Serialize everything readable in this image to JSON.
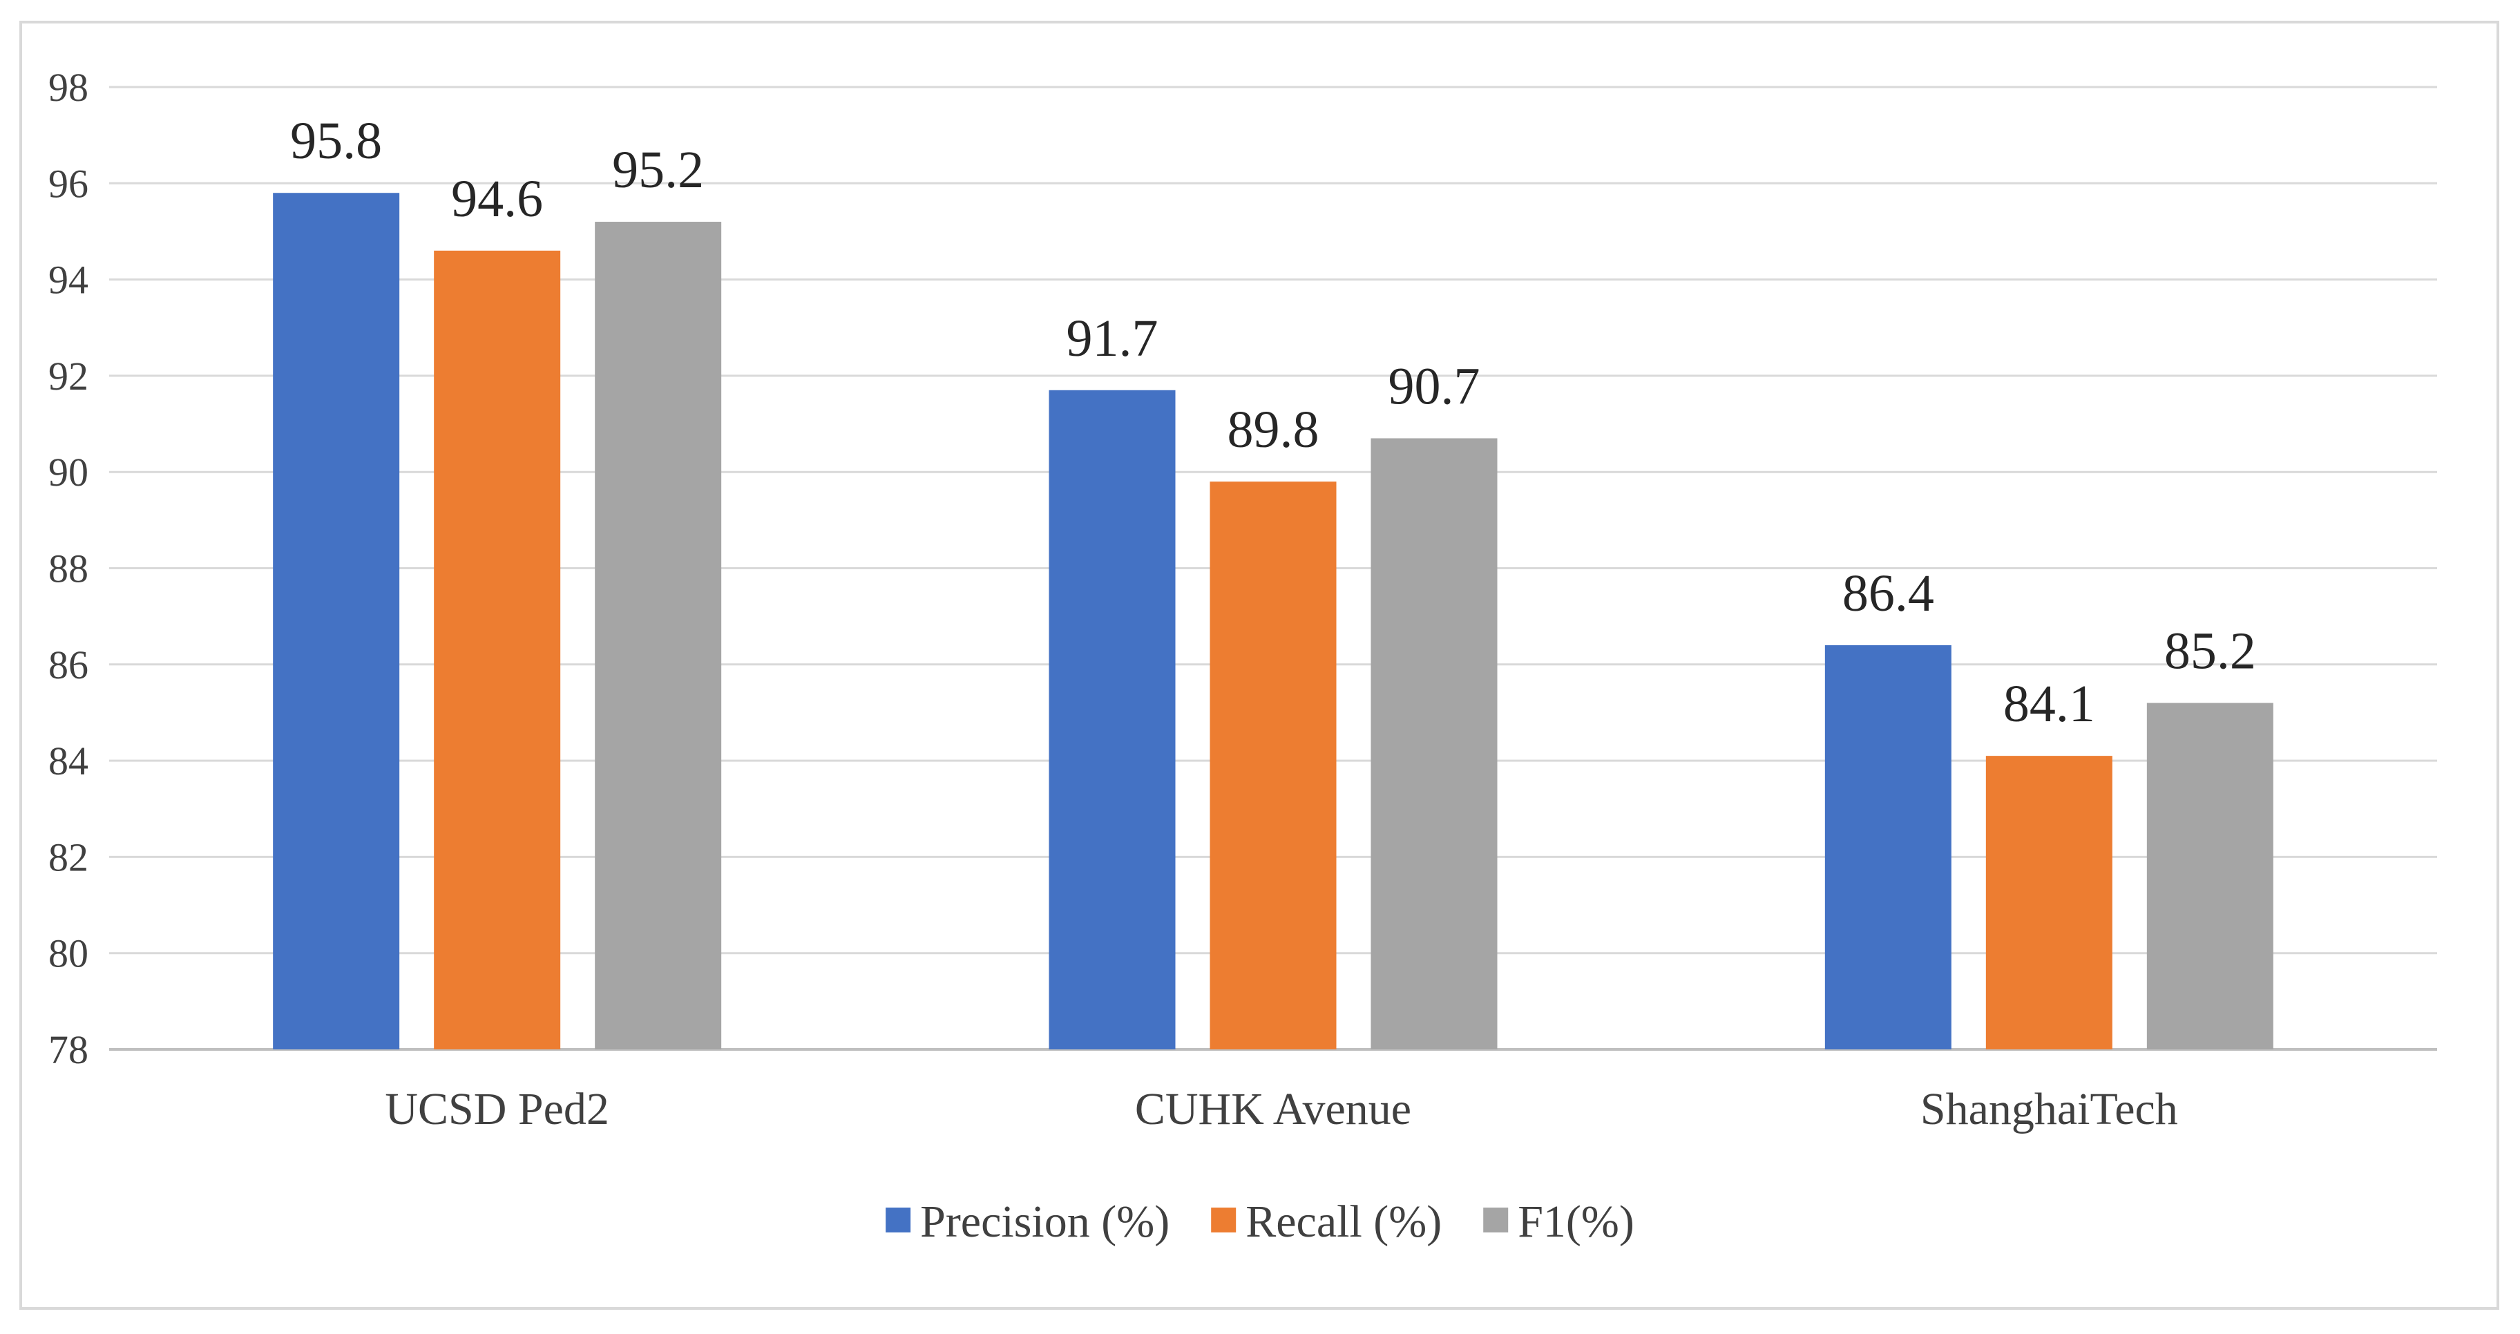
{
  "chart_data": {
    "type": "bar",
    "title": "",
    "xlabel": "",
    "ylabel": "",
    "categories": [
      "UCSD Ped2",
      "CUHK Avenue",
      "ShanghaiTech"
    ],
    "series": [
      {
        "name": "Precision (%)",
        "values": [
          95.8,
          91.7,
          86.4
        ],
        "color": "#4472c4"
      },
      {
        "name": "Recall (%)",
        "values": [
          94.6,
          89.8,
          84.1
        ],
        "color": "#ed7d31"
      },
      {
        "name": "F1(%)",
        "values": [
          95.2,
          90.7,
          85.2
        ],
        "color": "#a5a5a5"
      }
    ],
    "ylim": [
      78,
      98
    ],
    "yticks": [
      78,
      80,
      82,
      84,
      86,
      88,
      90,
      92,
      94,
      96,
      98
    ],
    "grid": true,
    "legend": "bottom",
    "data_labels": true
  }
}
